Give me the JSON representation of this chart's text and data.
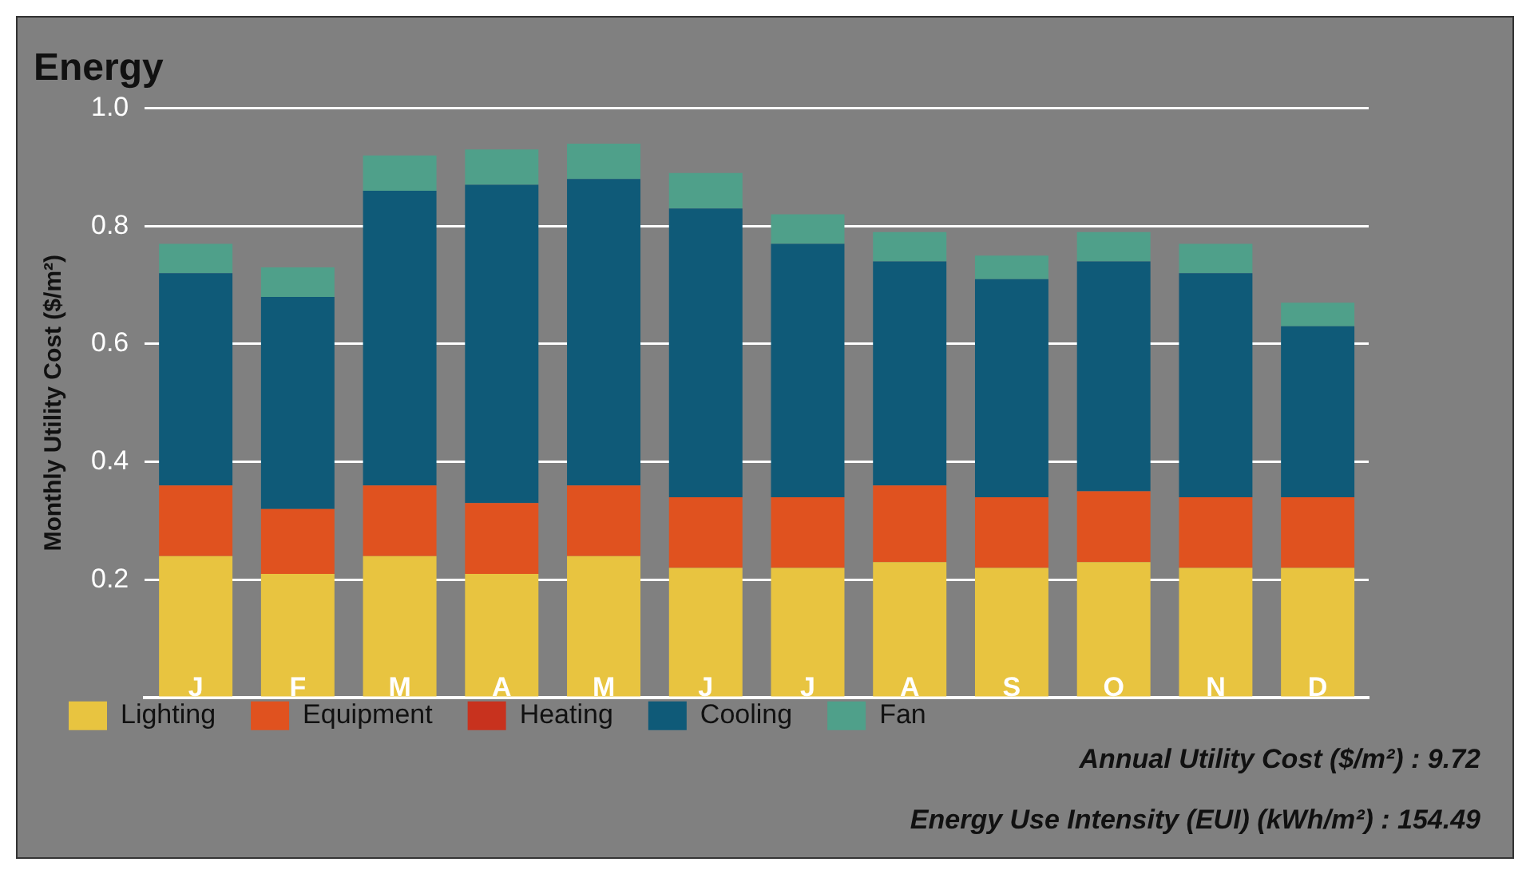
{
  "chart_data": {
    "type": "bar",
    "title": "Energy",
    "ylabel": "Monthly Utility Cost ($/m²)",
    "stacked": true,
    "grid": "y",
    "legend": "bottom",
    "categories": [
      "J",
      "F",
      "M",
      "A",
      "M",
      "J",
      "J",
      "A",
      "S",
      "O",
      "N",
      "D"
    ],
    "ylim": [
      0,
      1.0
    ],
    "yticks": [
      {
        "value": 0,
        "label": null
      },
      {
        "value": 0.2,
        "label": "0.2"
      },
      {
        "value": 0.4,
        "label": "0.4"
      },
      {
        "value": 0.6,
        "label": "0.6"
      },
      {
        "value": 0.8,
        "label": "0.8"
      },
      {
        "value": 1.0,
        "label": "1.0"
      }
    ],
    "series": [
      {
        "name": "Lighting",
        "color": "#e8c440",
        "values": [
          0.24,
          0.21,
          0.24,
          0.21,
          0.24,
          0.22,
          0.22,
          0.23,
          0.22,
          0.23,
          0.22,
          0.22
        ]
      },
      {
        "name": "Equipment",
        "color": "#e0521f",
        "values": [
          0.12,
          0.11,
          0.12,
          0.12,
          0.12,
          0.12,
          0.12,
          0.13,
          0.12,
          0.12,
          0.12,
          0.12
        ]
      },
      {
        "name": "Heating",
        "color": "#c8321e",
        "values": [
          0,
          0,
          0,
          0,
          0,
          0,
          0,
          0,
          0,
          0,
          0,
          0
        ]
      },
      {
        "name": "Cooling",
        "color": "#0f5a78",
        "values": [
          0.36,
          0.36,
          0.5,
          0.54,
          0.52,
          0.49,
          0.43,
          0.38,
          0.37,
          0.39,
          0.38,
          0.29
        ]
      },
      {
        "name": "Fan",
        "color": "#4fa08a",
        "values": [
          0.05,
          0.05,
          0.06,
          0.06,
          0.06,
          0.06,
          0.05,
          0.05,
          0.04,
          0.05,
          0.05,
          0.04
        ]
      }
    ],
    "annotations": [
      "Annual Utility Cost ($/m²) : 9.72",
      "Energy Use Intensity (EUI) (kWh/m²) : 154.49"
    ]
  }
}
